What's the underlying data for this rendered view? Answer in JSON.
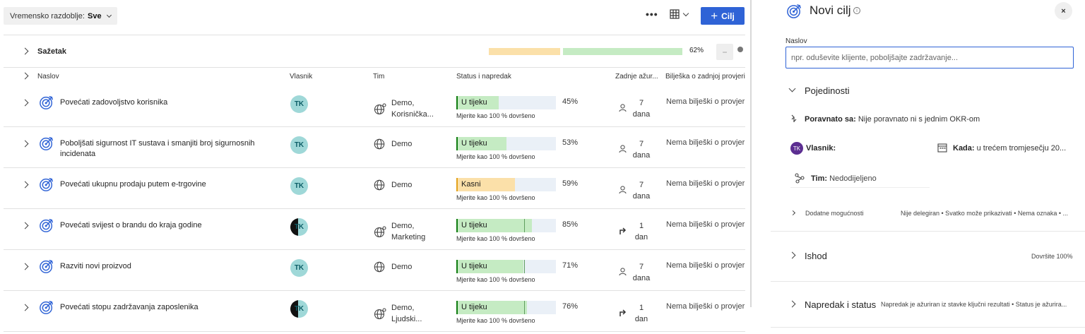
{
  "toolbar": {
    "period_label": "Vremensko razdoblje:",
    "period_value": "Sve",
    "more_label": "•••",
    "add_label": "Cilj",
    "add_plus": "+"
  },
  "summary": {
    "title": "Sažetak",
    "percent": "62%",
    "collapse": "−"
  },
  "columns": {
    "naslov": "Naslov",
    "vlasnik": "Vlasnik",
    "tim": "Tim",
    "status": "Status i napredak",
    "zadnje": "Zadnje ažur...",
    "biljeska": "Bilješka o zadnjoj provjeri"
  },
  "rows": [
    {
      "name": "Povećati zadovoljstvo korisnika",
      "owner": "TK",
      "team": "Demo, Korisnička...",
      "status": "U tijeku",
      "progress": 0.45,
      "pct": "45%",
      "measure": "Mjerite kao 100 % dovršeno",
      "upd_n": "7",
      "upd_u": "dana",
      "note": "Nema bilješki o provjer"
    },
    {
      "name": "Poboljšati sigurnost IT sustava i smanjiti broj sigurnosnih incidenata",
      "owner": "TK",
      "team": "Demo",
      "status": "U tijeku",
      "progress": 0.53,
      "pct": "53%",
      "measure": "Mjerite kao 100 % dovršeno",
      "upd_n": "7",
      "upd_u": "dana",
      "note": "Nema bilješki o provjer"
    },
    {
      "name": "Povećati ukupnu prodaju putem e-trgovine",
      "owner": "TK",
      "team": "Demo",
      "status": "Kasni",
      "progress": 0.59,
      "pct": "59%",
      "measure": "Mjerite kao 100 % dovršeno",
      "upd_n": "7",
      "upd_u": "dana",
      "note": "Nema bilješki o provjer"
    },
    {
      "name": "Povećati svijest o brandu do kraja godine",
      "owner": "TK",
      "team": "Demo, Marketing",
      "status": "U tijeku",
      "progress": 0.85,
      "pct": "85%",
      "measure": "Mjerite kao 100 % dovršeno",
      "upd_n": "1",
      "upd_u": "dan",
      "note": "Nema bilješki o provjer"
    },
    {
      "name": "Razviti novi proizvod",
      "owner": "TK",
      "team": "Demo",
      "status": "U tijeku",
      "progress": 0.71,
      "pct": "71%",
      "measure": "Mjerite kao 100 % dovršeno",
      "upd_n": "7",
      "upd_u": "dana",
      "note": "Nema bilješki o provjer"
    },
    {
      "name": "Povećati stopu zadržavanja zaposlenika",
      "owner": "TK",
      "team": "Demo, Ljudski...",
      "status": "U tijeku",
      "progress": 0.76,
      "pct": "76%",
      "measure": "Mjerite kao 100 % dovršeno",
      "upd_n": "1",
      "upd_u": "dan",
      "note": "Nema bilješki o provjer"
    }
  ],
  "panel": {
    "title": "Novi cilj",
    "info": "i",
    "close": "×",
    "naslov_label": "Naslov",
    "naslov_placeholder": "npr. oduševite klijente, poboljšajte zadržavanje...",
    "pojedinosti": "Pojedinosti",
    "poravnato_label": "Poravnato sa:",
    "poravnato_value": "Nije poravnato ni s jednim OKR-om",
    "vlasnik_avatar": "TK",
    "vlasnik_label": "Vlasnik:",
    "kada_label": "Kada:",
    "kada_value": "u trećem tromjesečju 20...",
    "tim_label": "Tim:",
    "tim_value": "Nedodijeljeno",
    "dodatne_label": "Dodatne mogućnosti",
    "dodatne_value": "Nije delegiran • Svatko može prikazivati • Nema oznaka • ...",
    "ishod_label": "Ishod",
    "ishod_value": "Dovršite 100%",
    "napredak_label": "Napredak i status",
    "napredak_value": "Napredak je ažuriran iz stavke ključni rezultati • Status je ažurira..."
  }
}
